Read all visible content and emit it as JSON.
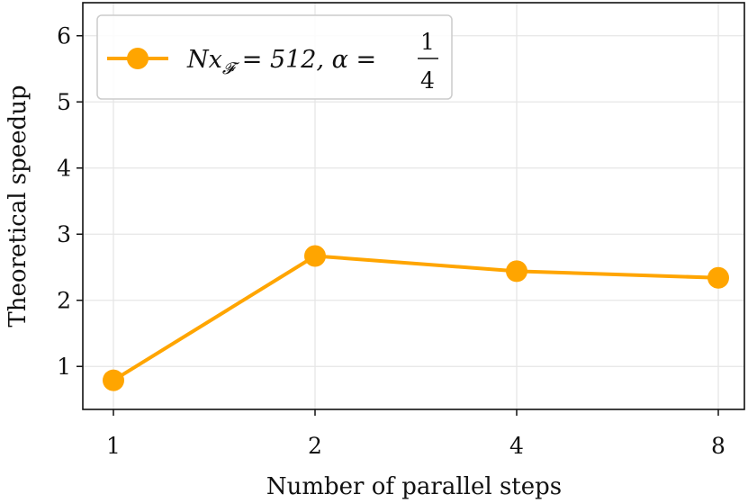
{
  "chart_data": {
    "type": "line",
    "categories": [
      "1",
      "2",
      "4",
      "8"
    ],
    "series": [
      {
        "name": "Nx_F = 512, α = 1/4",
        "values": [
          0.79,
          2.67,
          2.44,
          2.34
        ],
        "color": "#ffa500"
      }
    ],
    "xlabel": "Number of parallel steps",
    "ylabel": "Theoretical speedup",
    "yticks": [
      1,
      2,
      3,
      4,
      5,
      6
    ],
    "ylim": [
      0.35,
      6.5
    ],
    "grid": true,
    "legend": {
      "position": "top-left",
      "math": {
        "lhs": "Nx",
        "sub": "𝓕",
        "mid": " = 512, α = ",
        "num": "1",
        "den": "4"
      }
    }
  }
}
